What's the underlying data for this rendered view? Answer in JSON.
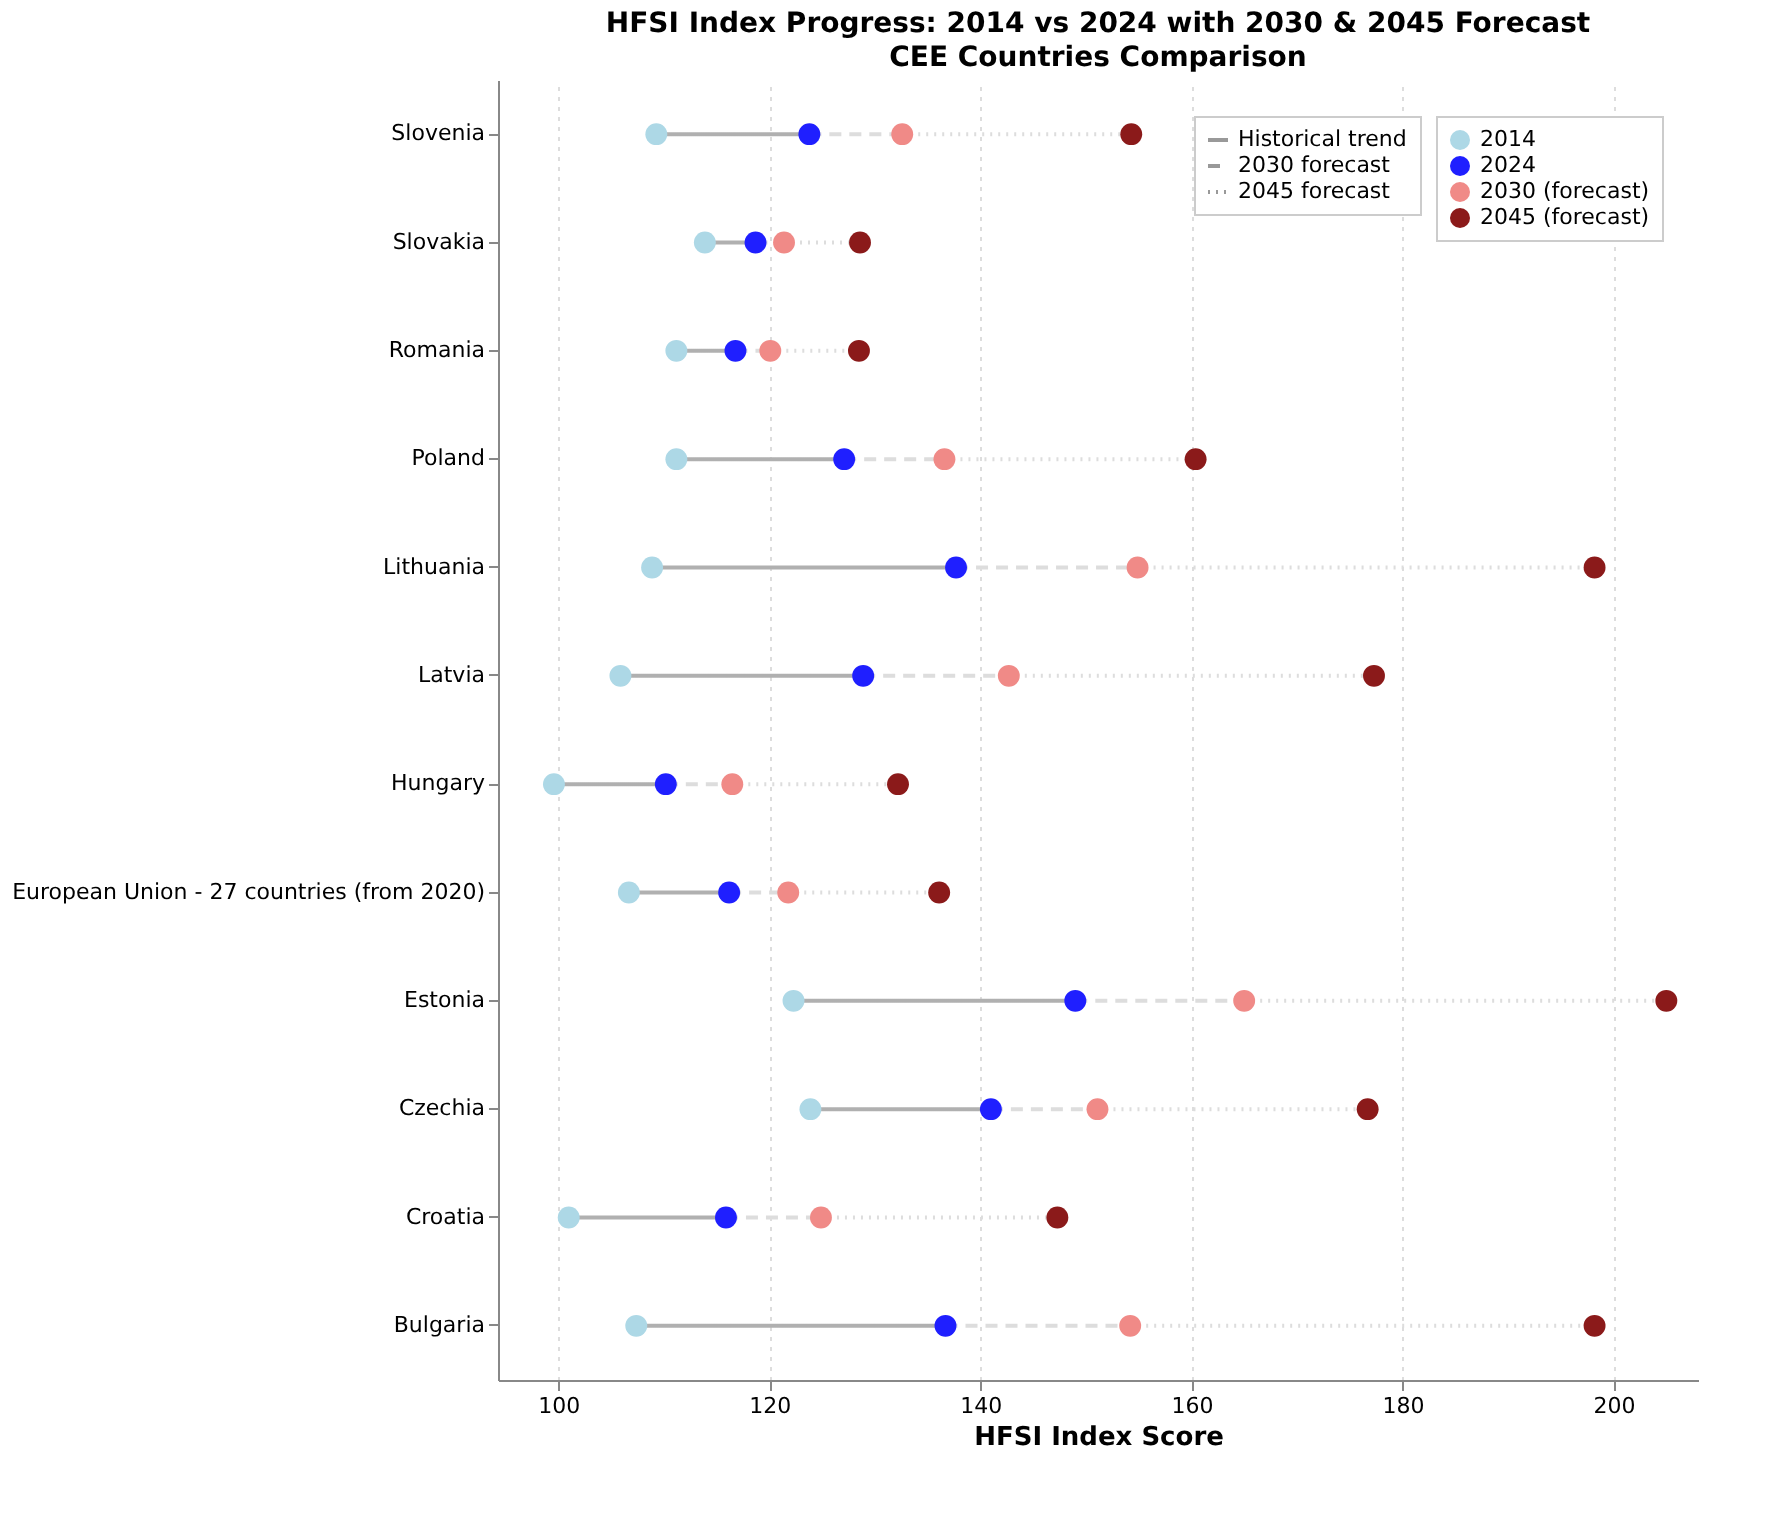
{
  "chart_data": {
    "type": "scatter",
    "title": "HFSI Index Progress: 2014 vs 2024 with 2030 & 2045 Forecast",
    "subtitle": "CEE Countries Comparison",
    "xlabel": "HFSI Index Score",
    "categories": [
      "Slovenia",
      "Slovakia",
      "Romania",
      "Poland",
      "Lithuania",
      "Latvia",
      "Hungary",
      "European Union - 27 countries (from 2020)",
      "Estonia",
      "Czechia",
      "Croatia",
      "Bulgaria"
    ],
    "orientation": "horizontal",
    "xlim": [
      94.3,
      208
    ],
    "xticks": [
      100,
      120,
      140,
      160,
      180,
      200
    ],
    "grid": "x",
    "legend": "top right",
    "marker": "circle",
    "annotations": [
      "Historical trend",
      "2030 forecast",
      "2045 forecast"
    ],
    "series": [
      {
        "name": "2014",
        "color": "#add8e6",
        "values": [
          109.3,
          113.9,
          111.2,
          111.2,
          108.9,
          105.9,
          99.6,
          106.7,
          122.3,
          123.9,
          101.0,
          107.4
        ]
      },
      {
        "name": "2024",
        "color": "#1f1fff",
        "values": [
          123.8,
          118.7,
          116.8,
          127.1,
          137.7,
          128.9,
          110.2,
          116.2,
          149.0,
          141.0,
          115.9,
          136.7
        ]
      },
      {
        "name": "2030 (forecast)",
        "color": "#f08a87",
        "values": [
          132.6,
          121.4,
          120.1,
          136.6,
          154.9,
          142.7,
          116.5,
          121.8,
          165.0,
          151.1,
          124.9,
          154.2
        ]
      },
      {
        "name": "2045 (forecast)",
        "color": "#8b1a1a",
        "values": [
          154.3,
          128.6,
          128.5,
          160.4,
          198.2,
          177.3,
          132.2,
          136.1,
          205.0,
          176.7,
          147.3,
          198.2
        ]
      }
    ]
  }
}
